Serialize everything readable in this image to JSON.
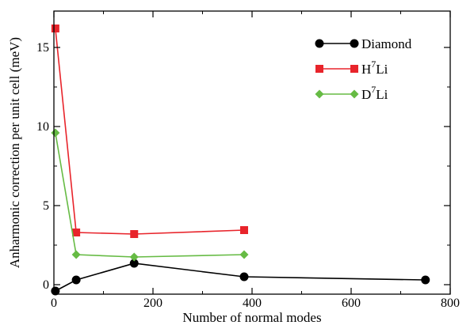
{
  "chart_data": {
    "type": "line",
    "title": "",
    "xlabel": "Number of normal modes",
    "ylabel": "Anharmonic correction per unit cell (meV)",
    "xlim": [
      0,
      800
    ],
    "ylim": [
      -0.6,
      17.3
    ],
    "xticks": [
      0,
      200,
      400,
      600,
      800
    ],
    "yticks": [
      0,
      5,
      10,
      15
    ],
    "grid": false,
    "legend_position": "top-right",
    "series": [
      {
        "name": "Diamond",
        "name_main": "Diamond",
        "name_sup": "",
        "name_suffix": "",
        "color": "#000000",
        "marker": "circle",
        "x": [
          3,
          45,
          162,
          384,
          750
        ],
        "y": [
          -0.4,
          0.3,
          1.35,
          0.5,
          0.3
        ]
      },
      {
        "name": "H7Li",
        "name_main": "H",
        "name_sup": "7",
        "name_suffix": "Li",
        "color": "#e8242b",
        "marker": "square",
        "x": [
          3,
          45,
          162,
          384
        ],
        "y": [
          16.2,
          3.3,
          3.2,
          3.45
        ]
      },
      {
        "name": "D7Li",
        "name_main": "D",
        "name_sup": "7",
        "name_suffix": "Li",
        "color": "#66bb44",
        "marker": "diamond",
        "x": [
          3,
          45,
          162,
          384
        ],
        "y": [
          9.6,
          1.9,
          1.75,
          1.9
        ]
      }
    ]
  }
}
